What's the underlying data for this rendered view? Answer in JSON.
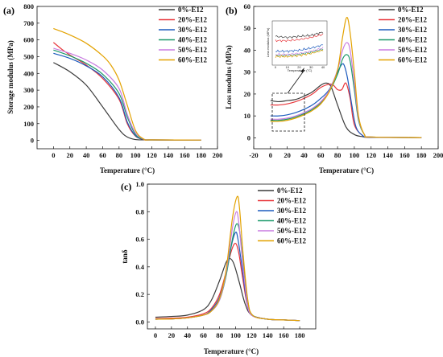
{
  "series_names": [
    "0%-E12",
    "20%-E12",
    "30%-E12",
    "40%-E12",
    "50%-E12",
    "60%-E12"
  ],
  "colors": [
    "#3a3a3a",
    "#e8363b",
    "#1d5bbd",
    "#1c9a6a",
    "#c97ce0",
    "#e3a200"
  ],
  "chart_data": [
    {
      "type": "line",
      "panel": "(a)",
      "xlabel": "Temperature (°C)",
      "ylabel": "Storage modulus (MPa)",
      "xlim": [
        -20,
        200
      ],
      "ylim": [
        -50,
        800
      ],
      "xticks": [
        0,
        20,
        40,
        60,
        80,
        100,
        120,
        140,
        160,
        180,
        200
      ],
      "yticks": [
        0,
        100,
        200,
        300,
        400,
        500,
        600,
        700,
        800
      ],
      "legend": "top-right",
      "series": [
        {
          "name": "0%-E12",
          "x": [
            0,
            20,
            40,
            60,
            80,
            90,
            100,
            110,
            120,
            180
          ],
          "y": [
            465,
            410,
            330,
            200,
            65,
            20,
            5,
            3,
            2,
            2
          ]
        },
        {
          "name": "20%-E12",
          "x": [
            0,
            10,
            20,
            40,
            60,
            80,
            90,
            100,
            110,
            120,
            180
          ],
          "y": [
            585,
            545,
            510,
            450,
            370,
            245,
            100,
            25,
            5,
            3,
            2
          ]
        },
        {
          "name": "30%-E12",
          "x": [
            0,
            20,
            40,
            60,
            80,
            90,
            100,
            110,
            120,
            180
          ],
          "y": [
            520,
            490,
            445,
            380,
            255,
            110,
            28,
            6,
            3,
            2
          ]
        },
        {
          "name": "40%-E12",
          "x": [
            0,
            20,
            40,
            60,
            80,
            90,
            100,
            110,
            120,
            180
          ],
          "y": [
            540,
            505,
            460,
            395,
            280,
            140,
            35,
            7,
            3,
            2
          ]
        },
        {
          "name": "50%-E12",
          "x": [
            0,
            20,
            40,
            60,
            80,
            90,
            100,
            110,
            120,
            180
          ],
          "y": [
            550,
            520,
            480,
            420,
            310,
            155,
            45,
            8,
            3,
            2
          ]
        },
        {
          "name": "60%-E12",
          "x": [
            0,
            10,
            20,
            40,
            60,
            70,
            80,
            90,
            100,
            110,
            120,
            180
          ],
          "y": [
            668,
            650,
            630,
            580,
            505,
            450,
            360,
            210,
            60,
            8,
            3,
            2
          ]
        }
      ]
    },
    {
      "type": "line",
      "panel": "(b)",
      "xlabel": "Temperature (°C)",
      "ylabel": "Loss modulus (MPa)",
      "xlim": [
        -20,
        200
      ],
      "ylim": [
        -5,
        60
      ],
      "xticks": [
        -20,
        0,
        20,
        40,
        60,
        80,
        100,
        120,
        140,
        160,
        180,
        200
      ],
      "yticks": [
        0,
        10,
        20,
        30,
        40,
        50,
        60
      ],
      "legend": "top-right",
      "inset": {
        "ylabel": "Loss modulus (MPa)",
        "xlabel": "Temperature (°C)",
        "xticks": [
          0,
          10,
          20,
          30,
          40
        ]
      },
      "series": [
        {
          "name": "0%-E12",
          "x": [
            0,
            10,
            20,
            30,
            40,
            50,
            60,
            66,
            72,
            80,
            90,
            100,
            110,
            120,
            180
          ],
          "y": [
            17,
            16.5,
            17,
            17.5,
            19,
            21,
            24,
            25,
            23.5,
            15,
            5,
            1.5,
            0.5,
            0.2,
            0.1
          ]
        },
        {
          "name": "20%-E12",
          "x": [
            0,
            10,
            20,
            30,
            40,
            50,
            60,
            70,
            75,
            80,
            85,
            90,
            95,
            100,
            110,
            120,
            180
          ],
          "y": [
            15,
            15,
            15.5,
            16.5,
            18,
            20,
            23,
            24.5,
            24,
            22,
            22,
            25,
            18,
            6,
            1,
            0.3,
            0.1
          ]
        },
        {
          "name": "30%-E12",
          "x": [
            0,
            10,
            20,
            30,
            40,
            50,
            60,
            70,
            80,
            85,
            88,
            92,
            97,
            102,
            110,
            120,
            180
          ],
          "y": [
            10,
            10,
            10.5,
            11.5,
            13,
            15,
            18,
            22,
            30,
            33.5,
            33,
            27,
            15,
            5,
            1,
            0.3,
            0.1
          ]
        },
        {
          "name": "40%-E12",
          "x": [
            0,
            10,
            20,
            30,
            40,
            50,
            60,
            70,
            80,
            86,
            91,
            95,
            100,
            105,
            112,
            120,
            180
          ],
          "y": [
            8,
            8,
            8.5,
            9.5,
            11,
            13,
            16,
            21,
            29,
            36,
            38,
            35,
            22,
            8,
            1.5,
            0.4,
            0.1
          ]
        },
        {
          "name": "50%-E12",
          "x": [
            0,
            10,
            20,
            30,
            40,
            50,
            60,
            70,
            80,
            86,
            91,
            95,
            100,
            105,
            112,
            120,
            180
          ],
          "y": [
            8.5,
            8.5,
            9,
            10,
            11.5,
            13.5,
            16.5,
            21.5,
            31,
            40,
            43.5,
            40,
            25,
            9,
            1.5,
            0.4,
            0.1
          ]
        },
        {
          "name": "60%-E12",
          "x": [
            0,
            10,
            20,
            30,
            40,
            50,
            60,
            70,
            80,
            86,
            91,
            95,
            100,
            105,
            112,
            120,
            180
          ],
          "y": [
            7.5,
            7.5,
            8,
            9,
            10.5,
            12.5,
            15.5,
            21,
            31,
            46,
            55,
            48,
            30,
            10,
            1.5,
            0.4,
            0.1
          ]
        }
      ]
    },
    {
      "type": "line",
      "panel": "(c)",
      "xlabel": "Temperature (°C)",
      "ylabel": "tanδ",
      "xlim": [
        -10,
        200
      ],
      "ylim": [
        -0.05,
        1.0
      ],
      "xticks": [
        0,
        20,
        40,
        60,
        80,
        100,
        120,
        140,
        160,
        180
      ],
      "yticks": [
        0.0,
        0.2,
        0.4,
        0.6,
        0.8,
        1.0
      ],
      "ytick_labels": [
        "0.0",
        "0.2",
        "0.4",
        "0.6",
        "0.8",
        "1.0"
      ],
      "legend": "top-right",
      "series": [
        {
          "name": "0%-E12",
          "x": [
            0,
            20,
            40,
            60,
            70,
            80,
            88,
            93,
            98,
            105,
            112,
            120,
            140,
            160,
            180
          ],
          "y": [
            0.035,
            0.04,
            0.05,
            0.09,
            0.16,
            0.3,
            0.43,
            0.46,
            0.42,
            0.28,
            0.13,
            0.05,
            0.02,
            0.015,
            0.01
          ]
        },
        {
          "name": "20%-E12",
          "x": [
            0,
            20,
            40,
            60,
            70,
            80,
            88,
            95,
            100,
            104,
            108,
            114,
            120,
            140,
            160,
            180
          ],
          "y": [
            0.025,
            0.028,
            0.035,
            0.06,
            0.1,
            0.2,
            0.36,
            0.52,
            0.57,
            0.5,
            0.35,
            0.14,
            0.05,
            0.02,
            0.015,
            0.01
          ]
        },
        {
          "name": "30%-E12",
          "x": [
            0,
            20,
            40,
            60,
            70,
            80,
            88,
            95,
            100,
            103,
            108,
            114,
            120,
            140,
            160,
            180
          ],
          "y": [
            0.02,
            0.022,
            0.03,
            0.05,
            0.09,
            0.18,
            0.35,
            0.56,
            0.65,
            0.6,
            0.4,
            0.15,
            0.05,
            0.02,
            0.015,
            0.01
          ]
        },
        {
          "name": "40%-E12",
          "x": [
            0,
            20,
            40,
            60,
            70,
            80,
            88,
            96,
            101,
            105,
            109,
            115,
            121,
            140,
            160,
            180
          ],
          "y": [
            0.02,
            0.022,
            0.03,
            0.05,
            0.08,
            0.16,
            0.33,
            0.6,
            0.71,
            0.66,
            0.45,
            0.16,
            0.05,
            0.02,
            0.015,
            0.01
          ]
        },
        {
          "name": "50%-E12",
          "x": [
            0,
            20,
            40,
            60,
            70,
            80,
            88,
            96,
            101,
            104,
            108,
            114,
            120,
            140,
            160,
            180
          ],
          "y": [
            0.02,
            0.022,
            0.03,
            0.05,
            0.08,
            0.16,
            0.35,
            0.68,
            0.8,
            0.72,
            0.48,
            0.16,
            0.05,
            0.02,
            0.015,
            0.01
          ]
        },
        {
          "name": "60%-E12",
          "x": [
            0,
            20,
            40,
            60,
            70,
            80,
            88,
            96,
            102,
            105,
            109,
            115,
            121,
            140,
            160,
            180
          ],
          "y": [
            0.02,
            0.022,
            0.03,
            0.05,
            0.08,
            0.17,
            0.37,
            0.75,
            0.91,
            0.82,
            0.52,
            0.17,
            0.05,
            0.02,
            0.015,
            0.01
          ]
        }
      ]
    }
  ]
}
